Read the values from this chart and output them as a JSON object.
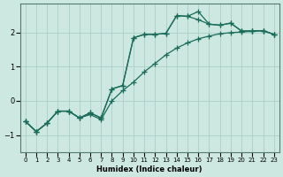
{
  "xlabel": "Humidex (Indice chaleur)",
  "background_color": "#cce8e0",
  "grid_color": "#aacfc8",
  "line_color": "#1a6b5a",
  "xlim": [
    -0.5,
    23.5
  ],
  "ylim": [
    -1.5,
    2.85
  ],
  "yticks": [
    -1,
    0,
    1,
    2
  ],
  "xticks": [
    0,
    1,
    2,
    3,
    4,
    5,
    6,
    7,
    8,
    9,
    10,
    11,
    12,
    13,
    14,
    15,
    16,
    17,
    18,
    19,
    20,
    21,
    22,
    23
  ],
  "line1_x": [
    0,
    1,
    2,
    3,
    4,
    5,
    6,
    7,
    8,
    9,
    10,
    11,
    12,
    13,
    14,
    15,
    16,
    17,
    18,
    19,
    20,
    21,
    22,
    23
  ],
  "line1_y": [
    -0.6,
    -0.9,
    -0.65,
    -0.3,
    -0.3,
    -0.5,
    -0.4,
    -0.55,
    -0.0,
    0.3,
    0.55,
    0.85,
    1.1,
    1.35,
    1.55,
    1.7,
    1.82,
    1.9,
    1.97,
    2.0,
    2.02,
    2.04,
    2.06,
    1.95
  ],
  "line2_x": [
    0,
    1,
    2,
    3,
    4,
    5,
    6,
    7,
    8,
    9,
    10,
    11,
    12,
    13,
    14,
    15,
    16,
    17,
    18,
    19,
    20,
    21,
    22,
    23
  ],
  "line2_y": [
    -0.6,
    -0.9,
    -0.65,
    -0.3,
    -0.3,
    -0.5,
    -0.35,
    -0.5,
    0.35,
    0.45,
    1.85,
    1.95,
    1.95,
    1.98,
    2.5,
    2.48,
    2.38,
    2.25,
    2.22,
    2.28,
    2.05,
    2.05,
    2.06,
    1.95
  ],
  "line3_x": [
    0,
    1,
    2,
    3,
    4,
    5,
    6,
    7,
    8,
    9,
    10,
    11,
    12,
    13,
    14,
    15,
    16,
    17,
    18,
    19,
    20,
    21,
    22,
    23
  ],
  "line3_y": [
    -0.6,
    -0.9,
    -0.65,
    -0.3,
    -0.3,
    -0.5,
    -0.35,
    -0.5,
    0.35,
    0.45,
    1.85,
    1.95,
    1.95,
    1.98,
    2.5,
    2.48,
    2.62,
    2.25,
    2.22,
    2.28,
    2.05,
    2.05,
    2.06,
    1.95
  ]
}
